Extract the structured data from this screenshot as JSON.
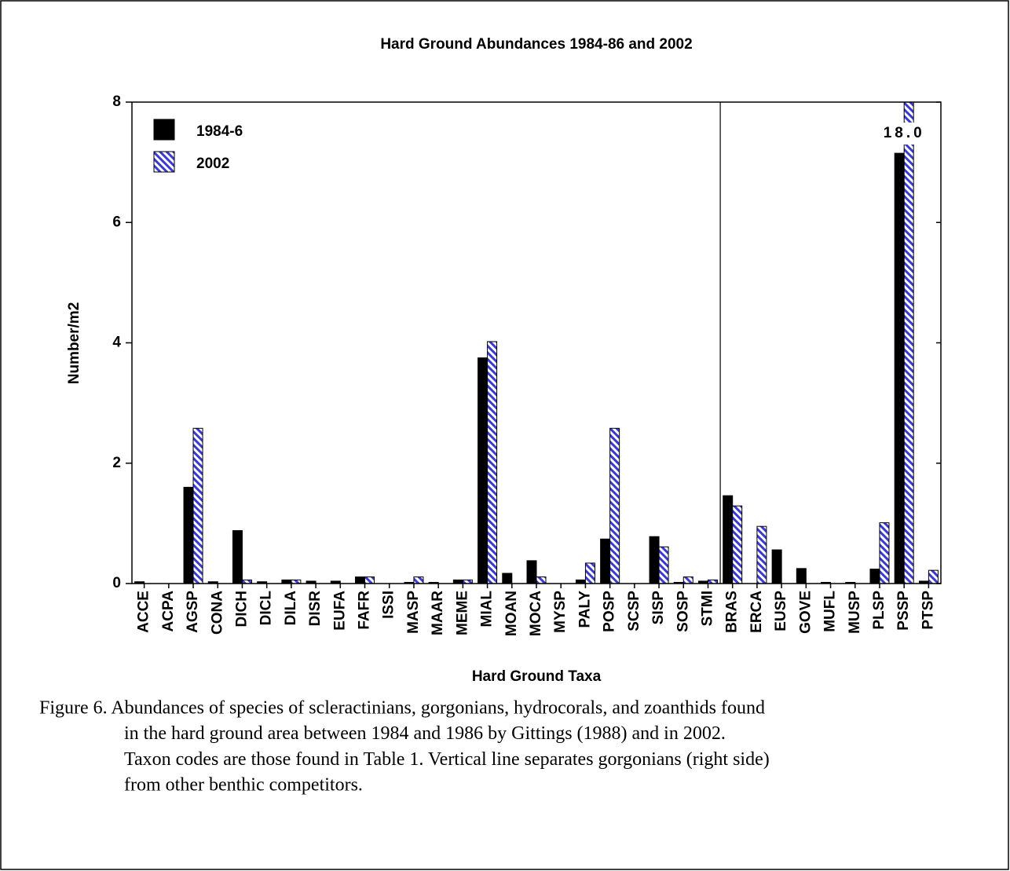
{
  "chart_data": {
    "type": "bar",
    "title": "Hard Ground Abundances 1984-86 and 2002",
    "x_label": "Hard Ground Taxa",
    "y_label": "Number/m2",
    "categories": [
      "ACCE",
      "ACPA",
      "AGSP",
      "CONA",
      "DICH",
      "DICL",
      "DILA",
      "DISR",
      "EUFA",
      "FAFR",
      "ISSI",
      "MASP",
      "MAAR",
      "MEME",
      "MIAL",
      "MOAN",
      "MOCA",
      "MYSP",
      "PALY",
      "POSP",
      "SCSP",
      "SISP",
      "SOSP",
      "STMI",
      "BRAS",
      "ERCA",
      "EUSP",
      "GOVE",
      "MUFL",
      "MUSP",
      "PLSP",
      "PSSP",
      "PTSP"
    ],
    "series": [
      {
        "name": "1984-6",
        "color": "#000000",
        "hatch": false,
        "values": [
          0.03,
          0,
          1.6,
          0.03,
          0.88,
          0.03,
          0.06,
          0.04,
          0.04,
          0.11,
          0,
          0.02,
          0.02,
          0.06,
          3.75,
          0.17,
          0.38,
          0,
          0.06,
          0.74,
          0,
          0.78,
          0.02,
          0.04,
          1.46,
          0,
          0.56,
          0.25,
          0.02,
          0.02,
          0.24,
          7.15,
          0.04
        ]
      },
      {
        "name": "2002",
        "color": "#3a3ad0",
        "hatch": true,
        "values": [
          0,
          0,
          2.58,
          0,
          0.06,
          0,
          0.06,
          0,
          0,
          0.11,
          0,
          0.11,
          0,
          0.06,
          4.02,
          0,
          0.11,
          0,
          0.34,
          2.58,
          0,
          0.61,
          0.11,
          0.06,
          1.29,
          0.95,
          0,
          0,
          0,
          0,
          1.01,
          18.0,
          0.22
        ],
        "value_labels": [
          null,
          null,
          null,
          null,
          null,
          null,
          null,
          null,
          null,
          null,
          null,
          null,
          null,
          null,
          null,
          null,
          null,
          null,
          null,
          null,
          null,
          null,
          null,
          null,
          null,
          null,
          null,
          null,
          null,
          null,
          null,
          "18.0",
          null
        ]
      }
    ],
    "ylim": [
      0,
      8
    ],
    "yticks": [
      0,
      2,
      4,
      6,
      8
    ],
    "divider_after": 24,
    "legend": "top-left"
  },
  "caption": {
    "lines": [
      "Figure 6.  Abundances of species of scleractinians, gorgonians, hydrocorals, and zoanthids found",
      "in the hard ground area between 1984 and 1986 by Gittings (1988) and in 2002.",
      "Taxon codes are those found in Table 1.  Vertical line separates gorgonians (right side)",
      "from other benthic competitors."
    ]
  }
}
